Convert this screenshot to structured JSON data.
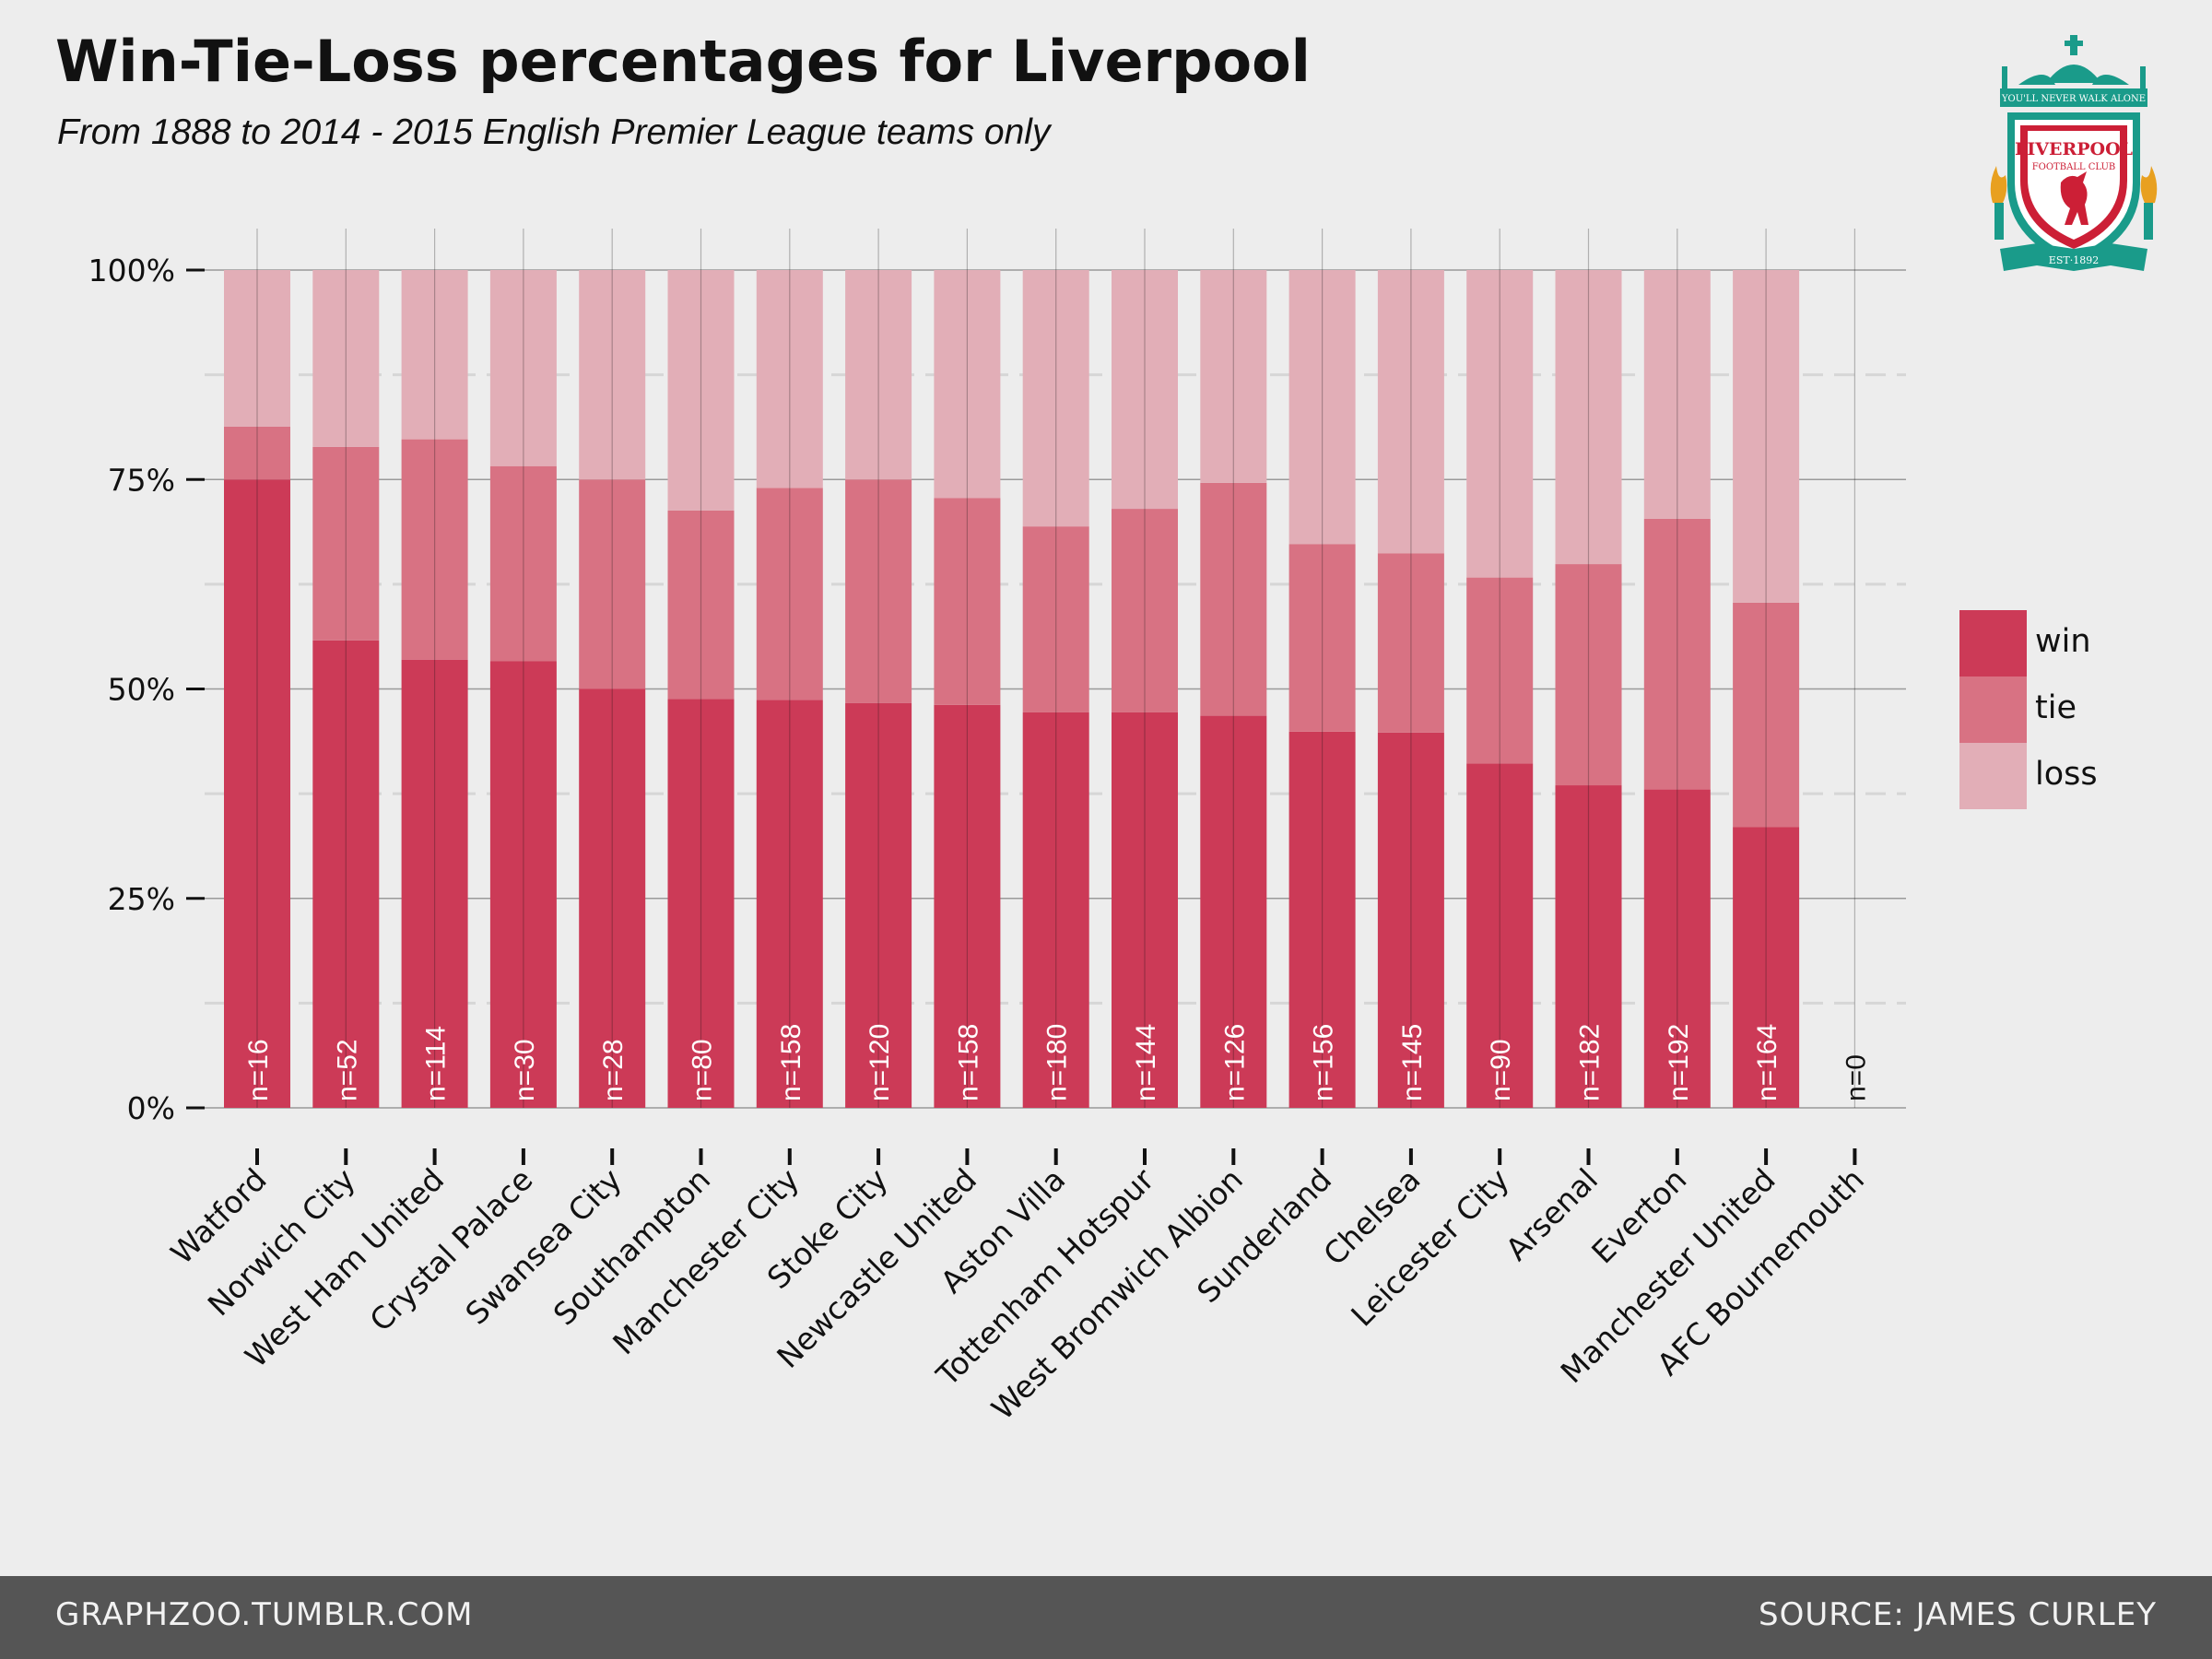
{
  "header": {
    "title": "Win-Tie-Loss percentages for Liverpool",
    "subtitle": "From 1888 to 2014 - 2015 English Premier League teams only"
  },
  "footer": {
    "left": "GRAPHZOO.TUMBLR.COM",
    "right": "SOURCE: JAMES CURLEY"
  },
  "logo": {
    "motto": "YOU'LL NEVER WALK ALONE",
    "name": "LIVERPOOL",
    "sub": "FOOTBALL CLUB",
    "est": "EST·1892"
  },
  "colors": {
    "background": "#ededed",
    "win": "#cc3a57",
    "tie": "#d87283",
    "loss": "#e2aeb7",
    "footer": "#555555"
  },
  "chart_data": {
    "type": "bar",
    "stacked": true,
    "title": "Win-Tie-Loss percentages for Liverpool",
    "subtitle": "From 1888 to 2014 - 2015 English Premier League teams only",
    "xlabel": "",
    "ylabel": "",
    "ylim": [
      0,
      100
    ],
    "y_ticks": [
      "0%",
      "25%",
      "50%",
      "75%",
      "100%"
    ],
    "y_tick_values": [
      0,
      25,
      50,
      75,
      100
    ],
    "grid": true,
    "legend_position": "right",
    "categories": [
      "Watford",
      "Norwich City",
      "West Ham United",
      "Crystal Palace",
      "Swansea City",
      "Southampton",
      "Manchester City",
      "Stoke City",
      "Newcastle United",
      "Aston Villa",
      "Tottenham Hotspur",
      "West Bromwich Albion",
      "Sunderland",
      "Chelsea",
      "Leicester City",
      "Arsenal",
      "Everton",
      "Manchester United",
      "AFC Bournemouth"
    ],
    "n_labels": [
      "n=16",
      "n=52",
      "n=114",
      "n=30",
      "n=28",
      "n=80",
      "n=158",
      "n=120",
      "n=158",
      "n=180",
      "n=144",
      "n=126",
      "n=156",
      "n=145",
      "n=90",
      "n=182",
      "n=192",
      "n=164",
      "n=0"
    ],
    "series": [
      {
        "name": "win",
        "values": [
          75.0,
          55.8,
          53.5,
          53.3,
          50.0,
          48.8,
          48.7,
          48.3,
          48.1,
          47.2,
          47.2,
          46.8,
          44.9,
          44.8,
          41.1,
          38.5,
          38.0,
          33.5,
          0
        ]
      },
      {
        "name": "tie",
        "values": [
          6.3,
          23.1,
          26.3,
          23.3,
          25.0,
          22.5,
          25.3,
          26.7,
          24.7,
          22.2,
          24.3,
          27.8,
          22.4,
          21.4,
          22.2,
          26.4,
          32.3,
          26.8,
          0
        ]
      },
      {
        "name": "loss",
        "values": [
          18.7,
          21.1,
          20.2,
          23.4,
          25.0,
          28.7,
          26.0,
          25.0,
          27.2,
          30.6,
          28.5,
          25.4,
          32.7,
          33.8,
          36.7,
          35.1,
          29.7,
          39.7,
          0
        ]
      }
    ]
  }
}
